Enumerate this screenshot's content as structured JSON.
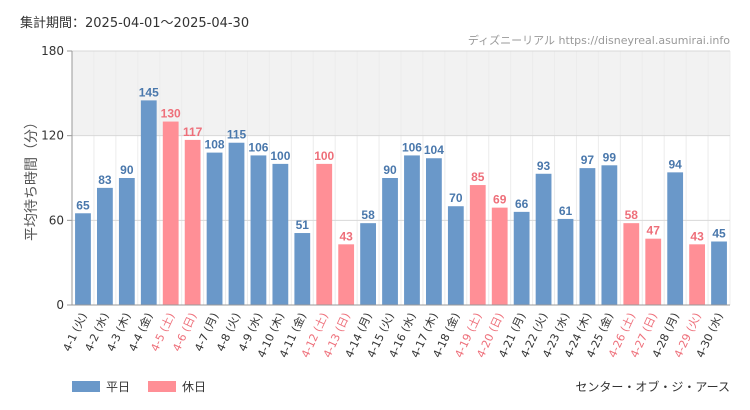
{
  "header": {
    "period_label": "集計期間：2025-04-01〜2025-04-30",
    "site_label": "ディズニーリアル https://disneyreal.asumirai.info"
  },
  "footer": {
    "attraction": "センター・オブ・ジ・アース"
  },
  "colors": {
    "weekday": "#6a98c9",
    "holiday": "#ff8f96",
    "holiday_label": "#ee6f7a",
    "weekday_label": "#4a78ac",
    "band": "#f2f2f2"
  },
  "chart_data": {
    "type": "bar",
    "ylabel": "平均待ち時間（分）",
    "ylim": [
      0,
      180
    ],
    "yticks": [
      0,
      60,
      120,
      180
    ],
    "band_range": [
      120,
      180
    ],
    "legend": [
      {
        "name": "平日",
        "kind": "weekday"
      },
      {
        "name": "休日",
        "kind": "holiday"
      }
    ],
    "legend_position": "bottom-left",
    "categories": [
      "4-1 (火)",
      "4-2 (水)",
      "4-3 (木)",
      "4-4 (金)",
      "4-5 (土)",
      "4-6 (日)",
      "4-7 (月)",
      "4-8 (火)",
      "4-9 (水)",
      "4-10 (木)",
      "4-11 (金)",
      "4-12 (土)",
      "4-13 (日)",
      "4-14 (月)",
      "4-15 (火)",
      "4-16 (水)",
      "4-17 (木)",
      "4-18 (金)",
      "4-19 (土)",
      "4-20 (日)",
      "4-21 (月)",
      "4-22 (火)",
      "4-23 (水)",
      "4-24 (木)",
      "4-25 (金)",
      "4-26 (土)",
      "4-27 (日)",
      "4-28 (月)",
      "4-29 (火)",
      "4-30 (水)"
    ],
    "values": [
      65,
      83,
      90,
      145,
      130,
      117,
      108,
      115,
      106,
      100,
      51,
      100,
      43,
      58,
      90,
      106,
      104,
      70,
      85,
      69,
      66,
      93,
      61,
      97,
      99,
      58,
      47,
      94,
      43,
      45
    ],
    "holiday": [
      false,
      false,
      false,
      false,
      true,
      true,
      false,
      false,
      false,
      false,
      false,
      true,
      true,
      false,
      false,
      false,
      false,
      false,
      true,
      true,
      false,
      false,
      false,
      false,
      false,
      true,
      true,
      false,
      true,
      false
    ]
  }
}
